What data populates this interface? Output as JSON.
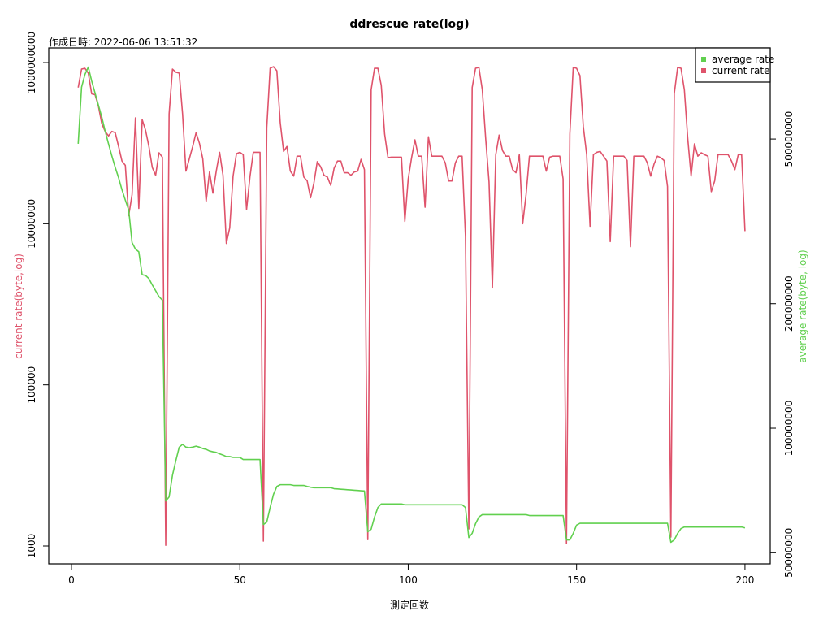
{
  "chart_data": {
    "type": "line",
    "title": "ddrescue rate(log)",
    "subtitle": "作成日時: 2022-06-06 13:51:32",
    "x_label": "測定回数",
    "y_label": "current rate(byte,log)",
    "y2_label": "average rate(byte, log)",
    "legend": "top-right",
    "ylog": true,
    "y2log": true,
    "xlim": [
      -6.75,
      207.5
    ],
    "xticks": [
      0,
      50,
      100,
      150,
      200
    ],
    "ylim": [
      600,
      1520000000
    ],
    "yticks": [
      1000,
      100000,
      10000000,
      1000000000
    ],
    "y2lim": [
      47000000,
      830000000
    ],
    "y2ticks": [
      50000000,
      100000000,
      200000000,
      500000000
    ],
    "x": [
      2,
      3,
      4,
      5,
      6,
      7,
      8,
      9,
      10,
      11,
      12,
      13,
      14,
      15,
      16,
      17,
      18,
      19,
      20,
      21,
      22,
      23,
      24,
      25,
      26,
      27,
      28,
      29,
      30,
      31,
      32,
      33,
      34,
      35,
      36,
      37,
      38,
      39,
      40,
      41,
      42,
      43,
      44,
      45,
      46,
      47,
      48,
      49,
      50,
      51,
      52,
      53,
      54,
      55,
      56,
      57,
      58,
      59,
      60,
      61,
      62,
      63,
      64,
      65,
      66,
      67,
      68,
      69,
      70,
      71,
      72,
      73,
      74,
      75,
      76,
      77,
      78,
      79,
      80,
      81,
      82,
      83,
      84,
      85,
      86,
      87,
      88,
      89,
      90,
      91,
      92,
      93,
      94,
      95,
      96,
      97,
      98,
      99,
      100,
      101,
      102,
      103,
      104,
      105,
      106,
      107,
      108,
      109,
      110,
      111,
      112,
      113,
      114,
      115,
      116,
      117,
      118,
      119,
      120,
      121,
      122,
      123,
      124,
      125,
      126,
      127,
      128,
      129,
      130,
      131,
      132,
      133,
      134,
      135,
      136,
      137,
      138,
      139,
      140,
      141,
      142,
      143,
      144,
      145,
      146,
      147,
      148,
      149,
      150,
      151,
      152,
      153,
      154,
      155,
      156,
      157,
      158,
      159,
      160,
      161,
      162,
      163,
      164,
      165,
      166,
      167,
      168,
      169,
      170,
      171,
      172,
      173,
      174,
      175,
      176,
      177,
      178,
      179,
      180,
      181,
      182,
      183,
      184,
      185,
      186,
      187,
      188,
      189,
      190,
      191,
      192,
      193,
      194,
      195,
      196,
      197,
      198,
      199,
      200
    ],
    "series": [
      {
        "name": "average rate",
        "color": "#61D04F",
        "axis": "y2",
        "values": [
          487000000.0,
          667000000.0,
          716000000.0,
          746000000.0,
          691000000.0,
          646000000.0,
          604000000.0,
          565000000.0,
          523000000.0,
          487000000.0,
          455000000.0,
          427000000.0,
          403000000.0,
          377000000.0,
          356000000.0,
          337000000.0,
          281000000.0,
          271000000.0,
          267000000.0,
          235000000.0,
          234000000.0,
          230000000.0,
          222000000.0,
          215000000.0,
          208000000.0,
          204000000.0,
          66700000.0,
          68200000.0,
          77000000.0,
          83500000.0,
          90000000.0,
          91400000.0,
          90000000.0,
          89700000.0,
          90000000.0,
          90500000.0,
          90000000.0,
          89300000.0,
          88900000.0,
          88100000.0,
          87700000.0,
          87400000.0,
          86700000.0,
          86100000.0,
          85400000.0,
          85400000.0,
          85000000.0,
          85000000.0,
          85000000.0,
          84000000.0,
          84000000.0,
          84000000.0,
          84000000.0,
          84000000.0,
          84000000.0,
          58500000.0,
          59300000.0,
          64300000.0,
          69200000.0,
          72300000.0,
          73000000.0,
          73000000.0,
          73000000.0,
          73000000.0,
          72700000.0,
          72700000.0,
          72700000.0,
          72700000.0,
          72300000.0,
          72000000.0,
          71800000.0,
          71800000.0,
          71800000.0,
          71800000.0,
          71800000.0,
          71800000.0,
          71400000.0,
          71300000.0,
          71200000.0,
          71100000.0,
          71000000.0,
          70900000.0,
          70800000.0,
          70700000.0,
          70600000.0,
          70500000.0,
          56200000.0,
          57000000.0,
          61000000.0,
          64300000.0,
          65600000.0,
          65600000.0,
          65600000.0,
          65600000.0,
          65600000.0,
          65600000.0,
          65600000.0,
          65300000.0,
          65300000.0,
          65300000.0,
          65300000.0,
          65300000.0,
          65300000.0,
          65300000.0,
          65300000.0,
          65300000.0,
          65300000.0,
          65300000.0,
          65300000.0,
          65300000.0,
          65300000.0,
          65300000.0,
          65300000.0,
          65300000.0,
          65300000.0,
          64300000.0,
          54400000.0,
          55700000.0,
          58800000.0,
          61000000.0,
          61800000.0,
          61800000.0,
          61800000.0,
          61800000.0,
          61800000.0,
          61800000.0,
          61800000.0,
          61800000.0,
          61800000.0,
          61800000.0,
          61800000.0,
          61800000.0,
          61800000.0,
          61800000.0,
          61500000.0,
          61500000.0,
          61500000.0,
          61500000.0,
          61500000.0,
          61500000.0,
          61500000.0,
          61500000.0,
          61500000.0,
          61500000.0,
          61500000.0,
          53700000.0,
          53700000.0,
          55700000.0,
          58300000.0,
          58900000.0,
          58900000.0,
          58900000.0,
          58900000.0,
          58900000.0,
          58900000.0,
          58900000.0,
          58900000.0,
          58900000.0,
          58900000.0,
          58900000.0,
          58900000.0,
          58900000.0,
          58900000.0,
          58900000.0,
          58900000.0,
          58900000.0,
          58900000.0,
          58900000.0,
          58900000.0,
          58900000.0,
          58900000.0,
          58900000.0,
          58900000.0,
          58900000.0,
          58900000.0,
          58900000.0,
          53000000.0,
          53700000.0,
          55700000.0,
          57200000.0,
          57700000.0,
          57700000.0,
          57700000.0,
          57700000.0,
          57700000.0,
          57700000.0,
          57700000.0,
          57700000.0,
          57700000.0,
          57700000.0,
          57700000.0,
          57700000.0,
          57700000.0,
          57700000.0,
          57700000.0,
          57700000.0,
          57700000.0,
          57700000.0,
          57400000.0
        ]
      },
      {
        "name": "current rate",
        "color": "#DF536B",
        "axis": "y",
        "values": [
          490000000.0,
          830000000.0,
          850000000.0,
          740000000.0,
          410000000.0,
          400000000.0,
          290000000.0,
          175000000.0,
          140000000.0,
          123000000.0,
          140000000.0,
          135000000.0,
          91000000.0,
          60000000.0,
          53000000.0,
          12600000.0,
          23000000.0,
          206000000.0,
          15500000.0,
          196000000.0,
          145000000.0,
          91000000.0,
          50000000.0,
          40000000.0,
          76000000.0,
          67000000.0,
          1020,
          230000000.0,
          830000000.0,
          760000000.0,
          740000000.0,
          230000000.0,
          45000000.0,
          64000000.0,
          91000000.0,
          135000000.0,
          100000000.0,
          64000000.0,
          19000000.0,
          44000000.0,
          24000000.0,
          45000000.0,
          77000000.0,
          40000000.0,
          5700000.0,
          8900000.0,
          39000000.0,
          74000000.0,
          77000000.0,
          72000000.0,
          15000000.0,
          38000000.0,
          77000000.0,
          77000000.0,
          77000000.0,
          1150,
          155000000.0,
          850000000.0,
          890000000.0,
          790000000.0,
          180000000.0,
          79000000.0,
          91000000.0,
          45000000.0,
          39000000.0,
          69000000.0,
          69000000.0,
          38000000.0,
          34000000.0,
          21000000.0,
          32000000.0,
          59000000.0,
          51000000.0,
          40000000.0,
          38000000.0,
          30000000.0,
          49000000.0,
          60000000.0,
          60000000.0,
          43000000.0,
          43000000.0,
          40000000.0,
          44000000.0,
          45000000.0,
          63000000.0,
          47000000.0,
          1200,
          460000000.0,
          850000000.0,
          850000000.0,
          520000000.0,
          130000000.0,
          66000000.0,
          67000000.0,
          67000000.0,
          67000000.0,
          67000000.0,
          10700000.0,
          36000000.0,
          66000000.0,
          110000000.0,
          69000000.0,
          69000000.0,
          16000000.0,
          120000000.0,
          69000000.0,
          69000000.0,
          69000000.0,
          69000000.0,
          57000000.0,
          34000000.0,
          34000000.0,
          57000000.0,
          69000000.0,
          69000000.0,
          7000000.0,
          1630,
          490000000.0,
          850000000.0,
          870000000.0,
          460000000.0,
          115000000.0,
          33000000.0,
          1600000.0,
          72000000.0,
          126000000.0,
          81000000.0,
          69000000.0,
          69000000.0,
          47000000.0,
          43000000.0,
          72000000.0,
          10000000.0,
          23000000.0,
          69000000.0,
          69000000.0,
          69000000.0,
          69000000.0,
          69000000.0,
          45000000.0,
          67000000.0,
          69000000.0,
          69000000.0,
          69000000.0,
          36000000.0,
          1070,
          130000000.0,
          870000000.0,
          850000000.0,
          690000000.0,
          160000000.0,
          72000000.0,
          9300000.0,
          72000000.0,
          77000000.0,
          79000000.0,
          69000000.0,
          60000000.0,
          6000000.0,
          69000000.0,
          69000000.0,
          69000000.0,
          69000000.0,
          61000000.0,
          5200000.0,
          69000000.0,
          69000000.0,
          69000000.0,
          69000000.0,
          57000000.0,
          39000000.0,
          55000000.0,
          69000000.0,
          66000000.0,
          61000000.0,
          29000000.0,
          1290,
          410000000.0,
          870000000.0,
          850000000.0,
          460000000.0,
          115000000.0,
          39000000.0,
          98000000.0,
          69000000.0,
          76000000.0,
          72000000.0,
          69000000.0,
          25000000.0,
          34000000.0,
          72000000.0,
          72000000.0,
          72000000.0,
          72000000.0,
          60000000.0,
          47000000.0,
          72000000.0,
          72000000.0,
          8100000.0
        ]
      }
    ]
  }
}
